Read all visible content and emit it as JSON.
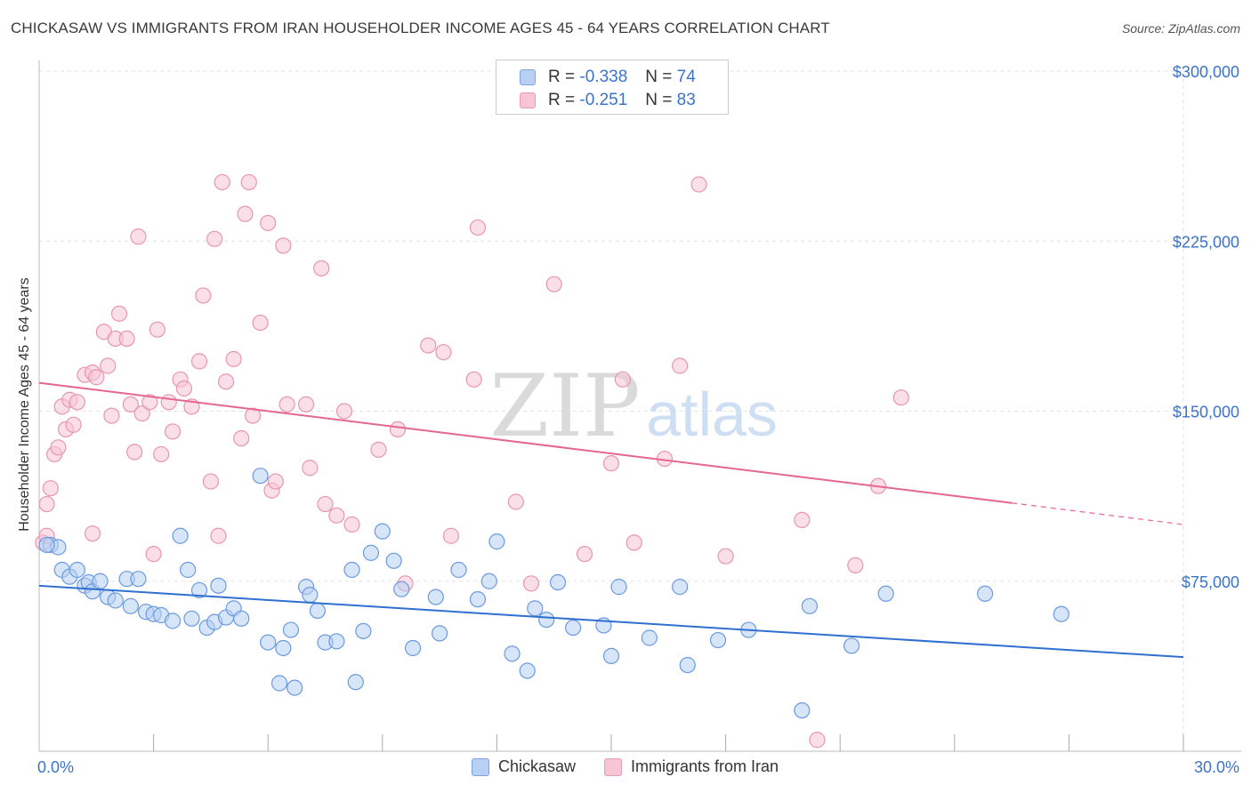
{
  "header": {
    "title": "CHICKASAW VS IMMIGRANTS FROM IRAN HOUSEHOLDER INCOME AGES 45 - 64 YEARS CORRELATION CHART",
    "source": "Source: ZipAtlas.com"
  },
  "watermark": {
    "zip": "ZIP",
    "atlas": "atlas"
  },
  "legend_top": {
    "rows": [
      {
        "r_label": "R =",
        "r_value": "-0.338",
        "n_label": "N =",
        "n_value": "74"
      },
      {
        "r_label": "R =",
        "r_value": "-0.251",
        "n_label": "N =",
        "n_value": "83"
      }
    ]
  },
  "colors": {
    "blue_fill": "#b7d0f3",
    "blue_stroke": "#6a9ae0",
    "blue_line": "#2f6fcf",
    "pink_fill": "#f8c5d6",
    "pink_stroke": "#e895b1",
    "pink_line": "#e5668f",
    "axis_text": "#3b73c9",
    "grid": "#e2e2e2"
  },
  "chart_data": {
    "type": "scatter",
    "title": "CHICKASAW VS IMMIGRANTS FROM IRAN HOUSEHOLDER INCOME AGES 45 - 64 YEARS CORRELATION CHART",
    "xlabel": "",
    "ylabel": "Householder Income Ages 45 - 64 years",
    "xlim": [
      0,
      30
    ],
    "ylim": [
      0,
      300000
    ],
    "x_tick_labels": [
      "0.0%",
      "30.0%"
    ],
    "y_ticks": [
      75000,
      150000,
      225000,
      300000
    ],
    "y_tick_labels": [
      "$75,000",
      "$150,000",
      "$225,000",
      "$300,000"
    ],
    "grid": true,
    "legend_position": "bottom",
    "series": [
      {
        "name": "Chickasaw",
        "r": -0.338,
        "n": 74,
        "trend": {
          "x0": 0,
          "y0": 73000,
          "x1": 30,
          "y1": 41500
        },
        "points": [
          [
            0.3,
            91000
          ],
          [
            0.5,
            90000
          ],
          [
            0.6,
            80000
          ],
          [
            0.8,
            77000
          ],
          [
            1.0,
            80000
          ],
          [
            1.2,
            73000
          ],
          [
            1.3,
            74500
          ],
          [
            1.4,
            70500
          ],
          [
            1.6,
            75000
          ],
          [
            1.8,
            68000
          ],
          [
            2.0,
            66500
          ],
          [
            2.3,
            76000
          ],
          [
            2.4,
            64000
          ],
          [
            2.6,
            76000
          ],
          [
            2.8,
            61500
          ],
          [
            3.0,
            60500
          ],
          [
            3.2,
            60000
          ],
          [
            3.5,
            57500
          ],
          [
            3.7,
            95000
          ],
          [
            3.9,
            80000
          ],
          [
            4.0,
            58500
          ],
          [
            4.2,
            71000
          ],
          [
            4.4,
            54500
          ],
          [
            4.6,
            57000
          ],
          [
            4.7,
            73000
          ],
          [
            4.9,
            59000
          ],
          [
            5.1,
            63000
          ],
          [
            5.3,
            58500
          ],
          [
            5.8,
            121500
          ],
          [
            6.0,
            48000
          ],
          [
            6.3,
            30000
          ],
          [
            6.4,
            45500
          ],
          [
            6.6,
            53500
          ],
          [
            6.7,
            28000
          ],
          [
            7.0,
            72500
          ],
          [
            7.1,
            69000
          ],
          [
            7.3,
            62000
          ],
          [
            7.5,
            48000
          ],
          [
            7.8,
            48500
          ],
          [
            8.2,
            80000
          ],
          [
            8.3,
            30500
          ],
          [
            8.5,
            53000
          ],
          [
            8.7,
            87500
          ],
          [
            9.0,
            97000
          ],
          [
            9.3,
            84000
          ],
          [
            9.5,
            71500
          ],
          [
            9.8,
            45500
          ],
          [
            10.5,
            52000
          ],
          [
            10.4,
            68000
          ],
          [
            11.0,
            80000
          ],
          [
            11.5,
            67000
          ],
          [
            11.8,
            75000
          ],
          [
            12.0,
            92500
          ],
          [
            12.4,
            43000
          ],
          [
            12.8,
            35500
          ],
          [
            13.0,
            63000
          ],
          [
            13.3,
            58000
          ],
          [
            13.6,
            74500
          ],
          [
            14.0,
            54500
          ],
          [
            14.8,
            55500
          ],
          [
            15.0,
            42000
          ],
          [
            15.2,
            72500
          ],
          [
            16.0,
            50000
          ],
          [
            16.8,
            72500
          ],
          [
            17.0,
            38000
          ],
          [
            17.8,
            49000
          ],
          [
            18.6,
            53500
          ],
          [
            20.0,
            18000
          ],
          [
            20.2,
            64000
          ],
          [
            21.3,
            46500
          ],
          [
            22.2,
            69500
          ],
          [
            24.8,
            69500
          ],
          [
            26.8,
            60500
          ],
          [
            0.2,
            91000
          ]
        ]
      },
      {
        "name": "Immigrants from Iran",
        "r": -0.251,
        "n": 83,
        "trend": {
          "x0": 0,
          "y0": 162500,
          "x1": 25.5,
          "y1": 109500
        },
        "trend_dashed": {
          "x0": 25.5,
          "y0": 109500,
          "x1": 30,
          "y1": 100000
        },
        "points": [
          [
            0.2,
            109000
          ],
          [
            0.3,
            116000
          ],
          [
            0.4,
            131000
          ],
          [
            0.5,
            134000
          ],
          [
            0.6,
            152000
          ],
          [
            0.7,
            142000
          ],
          [
            0.8,
            155000
          ],
          [
            0.9,
            144000
          ],
          [
            1.0,
            154000
          ],
          [
            1.2,
            166000
          ],
          [
            1.4,
            167000
          ],
          [
            1.4,
            96000
          ],
          [
            1.5,
            165000
          ],
          [
            1.7,
            185000
          ],
          [
            1.8,
            170000
          ],
          [
            1.9,
            148000
          ],
          [
            2.0,
            182000
          ],
          [
            2.1,
            193000
          ],
          [
            2.3,
            182000
          ],
          [
            2.4,
            153000
          ],
          [
            2.5,
            132000
          ],
          [
            2.6,
            227000
          ],
          [
            2.7,
            149000
          ],
          [
            2.9,
            154000
          ],
          [
            3.0,
            87000
          ],
          [
            3.1,
            186000
          ],
          [
            3.2,
            131000
          ],
          [
            3.4,
            154000
          ],
          [
            3.5,
            141000
          ],
          [
            3.7,
            164000
          ],
          [
            3.8,
            160000
          ],
          [
            4.0,
            152000
          ],
          [
            4.2,
            172000
          ],
          [
            4.3,
            201000
          ],
          [
            4.5,
            119000
          ],
          [
            4.6,
            226000
          ],
          [
            4.7,
            95000
          ],
          [
            4.8,
            251000
          ],
          [
            4.9,
            163000
          ],
          [
            5.1,
            173000
          ],
          [
            5.3,
            138000
          ],
          [
            5.4,
            237000
          ],
          [
            5.5,
            251000
          ],
          [
            5.6,
            148000
          ],
          [
            5.8,
            189000
          ],
          [
            6.0,
            233000
          ],
          [
            6.1,
            115000
          ],
          [
            6.2,
            119000
          ],
          [
            6.4,
            223000
          ],
          [
            6.5,
            153000
          ],
          [
            7.0,
            153000
          ],
          [
            7.1,
            125000
          ],
          [
            7.4,
            213000
          ],
          [
            7.5,
            109000
          ],
          [
            7.8,
            104000
          ],
          [
            8.0,
            150000
          ],
          [
            8.2,
            100000
          ],
          [
            8.9,
            133000
          ],
          [
            9.4,
            142000
          ],
          [
            9.6,
            74000
          ],
          [
            10.2,
            179000
          ],
          [
            10.6,
            176000
          ],
          [
            10.8,
            95000
          ],
          [
            11.4,
            164000
          ],
          [
            11.5,
            231000
          ],
          [
            12.5,
            110000
          ],
          [
            12.9,
            74000
          ],
          [
            13.5,
            206000
          ],
          [
            14.3,
            87000
          ],
          [
            15.0,
            127000
          ],
          [
            15.3,
            164000
          ],
          [
            15.6,
            92000
          ],
          [
            16.4,
            129000
          ],
          [
            16.8,
            170000
          ],
          [
            17.3,
            250000
          ],
          [
            18.0,
            86000
          ],
          [
            20.0,
            102000
          ],
          [
            20.4,
            5000
          ],
          [
            21.4,
            82000
          ],
          [
            22.0,
            117000
          ],
          [
            22.6,
            156000
          ],
          [
            0.1,
            92000
          ],
          [
            0.2,
            95000
          ]
        ]
      }
    ]
  }
}
